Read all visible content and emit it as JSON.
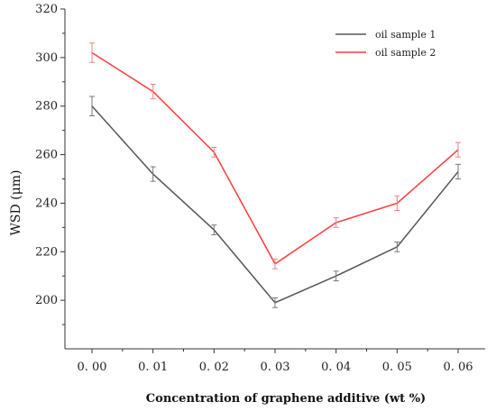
{
  "chart_data": {
    "type": "line",
    "title": "",
    "xlabel": "Concentration of graphene additive (wt %)",
    "ylabel": "WSD (μm)",
    "x": [
      0.0,
      0.01,
      0.02,
      0.03,
      0.04,
      0.05,
      0.06
    ],
    "x_tick_labels": [
      "0. 00",
      "0. 01",
      "0. 02",
      "0. 03",
      "0. 04",
      "0. 05",
      "0. 06"
    ],
    "ylim": [
      180,
      320
    ],
    "y_ticks": [
      200,
      220,
      240,
      260,
      280,
      300,
      320
    ],
    "grid": false,
    "legend_position": "top-right",
    "series": [
      {
        "name": "oil sample 1",
        "color": "#555555",
        "values": [
          280,
          252,
          229,
          199,
          210,
          222,
          253
        ],
        "errors": [
          4,
          3,
          2,
          2,
          2,
          2,
          3
        ]
      },
      {
        "name": "oil sample 2",
        "color": "#ff3b3b",
        "values": [
          302,
          286,
          261,
          215,
          232,
          240,
          262
        ],
        "errors": [
          4,
          3,
          2,
          2,
          2,
          3,
          3
        ]
      }
    ]
  }
}
